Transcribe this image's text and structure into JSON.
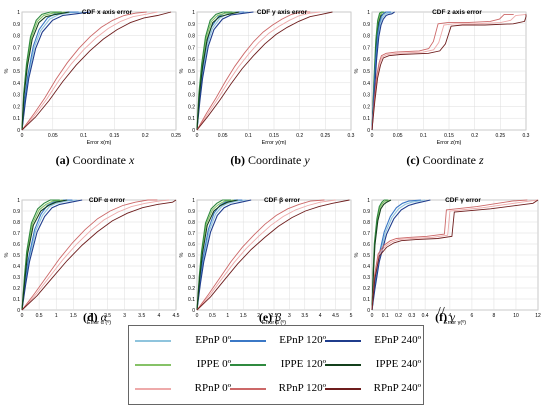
{
  "figure": {
    "captions": [
      {
        "tag": "(a)",
        "text": "Coordinate",
        "sym": "x"
      },
      {
        "tag": "(b)",
        "text": "Coordinate",
        "sym": "y"
      },
      {
        "tag": "(c)",
        "text": "Coordinate",
        "sym": "z"
      },
      {
        "tag": "(d)",
        "text": "",
        "sym": "α"
      },
      {
        "tag": "(e)",
        "text": "",
        "sym": "β"
      },
      {
        "tag": "(f)",
        "text": "",
        "sym": "γ"
      }
    ],
    "legend": [
      {
        "label": "EPnP 0º",
        "color": "#8fc4dd"
      },
      {
        "label": "EPnP 120º",
        "color": "#3b78c6"
      },
      {
        "label": "EPnP 240º",
        "color": "#1f3c8c"
      },
      {
        "label": "IPPE 0º",
        "color": "#86c267"
      },
      {
        "label": "IPPE 120º",
        "color": "#2f8a3f"
      },
      {
        "label": "IPPE 240º",
        "color": "#14401c"
      },
      {
        "label": "RPnP 0º",
        "color": "#eeaaaa"
      },
      {
        "label": "RPnP 120º",
        "color": "#cc6868"
      },
      {
        "label": "RPnP 240º",
        "color": "#6e1d1d"
      }
    ]
  },
  "chart_data": [
    {
      "type": "line",
      "title": "CDF x axis error",
      "xlabel": "Error x(m)",
      "ylabel": "%",
      "xlim": [
        0,
        0.25
      ],
      "ylim": [
        0,
        1
      ],
      "xticks": [
        "0",
        "0.05",
        "0.1",
        "0.15",
        "0.2",
        "0.25"
      ],
      "yticks": [
        "0",
        "0.1",
        "0.2",
        "0.3",
        "0.4",
        "0.5",
        "0.6",
        "0.7",
        "0.8",
        "0.9",
        "1"
      ],
      "grid": true,
      "series": [
        {
          "family": "EPnP",
          "x": [
            0,
            0.005,
            0.01,
            0.02,
            0.03,
            0.045,
            0.06,
            0.08,
            0.1
          ],
          "y": [
            0,
            0.25,
            0.45,
            0.7,
            0.84,
            0.94,
            0.98,
            0.995,
            1.0
          ]
        },
        {
          "family": "IPPE",
          "x": [
            0,
            0.003,
            0.008,
            0.015,
            0.025,
            0.035,
            0.05,
            0.07
          ],
          "y": [
            0,
            0.3,
            0.55,
            0.78,
            0.92,
            0.97,
            0.99,
            1.0
          ]
        },
        {
          "family": "RPnP",
          "x": [
            0,
            0.02,
            0.04,
            0.06,
            0.08,
            0.1,
            0.12,
            0.14,
            0.16,
            0.18,
            0.2,
            0.22
          ],
          "y": [
            0,
            0.12,
            0.26,
            0.42,
            0.56,
            0.68,
            0.78,
            0.86,
            0.92,
            0.96,
            0.98,
            1.0
          ]
        }
      ]
    },
    {
      "type": "line",
      "title": "CDF y axis error",
      "xlabel": "Error y(m)",
      "ylabel": "%",
      "xlim": [
        0,
        0.3
      ],
      "ylim": [
        0,
        1
      ],
      "xticks": [
        "0",
        "0.05",
        "0.1",
        "0.15",
        "0.2",
        "0.25",
        "0.3"
      ],
      "yticks": [
        "0",
        "0.1",
        "0.2",
        "0.3",
        "0.4",
        "0.5",
        "0.6",
        "0.7",
        "0.8",
        "0.9",
        "1"
      ],
      "grid": true,
      "series": [
        {
          "family": "EPnP",
          "x": [
            0,
            0.005,
            0.01,
            0.02,
            0.03,
            0.045,
            0.06,
            0.08,
            0.1
          ],
          "y": [
            0,
            0.25,
            0.45,
            0.72,
            0.86,
            0.95,
            0.985,
            0.998,
            1.0
          ]
        },
        {
          "family": "IPPE",
          "x": [
            0,
            0.004,
            0.01,
            0.018,
            0.028,
            0.04,
            0.055,
            0.075
          ],
          "y": [
            0,
            0.3,
            0.55,
            0.78,
            0.92,
            0.97,
            0.99,
            1.0
          ]
        },
        {
          "family": "RPnP",
          "x": [
            0,
            0.02,
            0.04,
            0.06,
            0.08,
            0.1,
            0.12,
            0.14,
            0.16,
            0.18,
            0.2,
            0.22,
            0.24
          ],
          "y": [
            0,
            0.13,
            0.26,
            0.4,
            0.53,
            0.64,
            0.74,
            0.82,
            0.88,
            0.93,
            0.97,
            0.99,
            1.0
          ]
        }
      ]
    },
    {
      "type": "line",
      "title": "CDF z axis error",
      "xlabel": "Error z(m)",
      "ylabel": "%",
      "xlim": [
        0,
        0.3
      ],
      "ylim": [
        0,
        1
      ],
      "xticks": [
        "0",
        "0.05",
        "0.1",
        "0.15",
        "0.2",
        "0.25",
        "0.3"
      ],
      "yticks": [
        "0",
        "0.1",
        "0.2",
        "0.3",
        "0.4",
        "0.5",
        "0.6",
        "0.7",
        "0.8",
        "0.9",
        "1"
      ],
      "grid": true,
      "series": [
        {
          "family": "IPPE",
          "x": [
            0,
            0.004,
            0.008,
            0.012,
            0.016,
            0.02,
            0.025
          ],
          "y": [
            0,
            0.4,
            0.75,
            0.92,
            0.98,
            0.995,
            1.0
          ]
        },
        {
          "family": "EPnP",
          "x": [
            0,
            0.004,
            0.008,
            0.012,
            0.016,
            0.02,
            0.025,
            0.03,
            0.035,
            0.04
          ],
          "y": [
            0,
            0.3,
            0.6,
            0.8,
            0.9,
            0.95,
            0.98,
            0.99,
            0.995,
            1.0
          ]
        },
        {
          "family": "RPnP",
          "x": [
            0,
            0.005,
            0.01,
            0.015,
            0.02,
            0.03,
            0.05,
            0.1,
            0.12,
            0.13,
            0.14,
            0.16,
            0.2,
            0.25,
            0.27,
            0.28,
            0.3
          ],
          "y": [
            0,
            0.25,
            0.45,
            0.56,
            0.62,
            0.64,
            0.65,
            0.66,
            0.68,
            0.74,
            0.89,
            0.9,
            0.9,
            0.91,
            0.93,
            0.97,
            0.98
          ]
        }
      ]
    },
    {
      "type": "line",
      "title": "CDF α error",
      "xlabel": "Error α (º)",
      "ylabel": "%",
      "xlim": [
        0,
        4.5
      ],
      "ylim": [
        0,
        1
      ],
      "xticks": [
        "0",
        "0.5",
        "1",
        "1.5",
        "2",
        "2.5",
        "3",
        "3.5",
        "4",
        "4.5"
      ],
      "yticks": [
        "0",
        "0.1",
        "0.2",
        "0.3",
        "0.4",
        "0.5",
        "0.6",
        "0.7",
        "0.8",
        "0.9",
        "1"
      ],
      "grid": true,
      "series": [
        {
          "family": "EPnP",
          "x": [
            0,
            0.1,
            0.2,
            0.4,
            0.6,
            0.8,
            1.0,
            1.3,
            1.6
          ],
          "y": [
            0,
            0.25,
            0.45,
            0.72,
            0.86,
            0.94,
            0.97,
            0.99,
            1.0
          ]
        },
        {
          "family": "IPPE",
          "x": [
            0,
            0.08,
            0.15,
            0.3,
            0.5,
            0.7,
            0.9,
            1.2
          ],
          "y": [
            0,
            0.3,
            0.52,
            0.78,
            0.91,
            0.96,
            0.99,
            1.0
          ]
        },
        {
          "family": "RPnP",
          "x": [
            0,
            0.4,
            0.8,
            1.2,
            1.6,
            2.0,
            2.4,
            2.8,
            3.2,
            3.6,
            4.0,
            4.3
          ],
          "y": [
            0,
            0.14,
            0.3,
            0.46,
            0.6,
            0.72,
            0.82,
            0.89,
            0.94,
            0.97,
            0.99,
            1.0
          ]
        }
      ]
    },
    {
      "type": "line",
      "title": "CDF β error",
      "xlabel": "Error β (º)",
      "ylabel": "%",
      "xlim": [
        0,
        5
      ],
      "ylim": [
        0,
        1
      ],
      "xticks": [
        "0",
        "0.5",
        "1",
        "1.5",
        "2",
        "2.5",
        "3",
        "3.5",
        "4",
        "4.5",
        "5"
      ],
      "yticks": [
        "0",
        "0.1",
        "0.2",
        "0.3",
        "0.4",
        "0.5",
        "0.6",
        "0.7",
        "0.8",
        "0.9",
        "1"
      ],
      "grid": true,
      "series": [
        {
          "family": "EPnP",
          "x": [
            0,
            0.1,
            0.2,
            0.4,
            0.6,
            0.8,
            1.0,
            1.3,
            1.6
          ],
          "y": [
            0,
            0.25,
            0.45,
            0.72,
            0.87,
            0.94,
            0.97,
            0.99,
            1.0
          ]
        },
        {
          "family": "IPPE",
          "x": [
            0,
            0.08,
            0.16,
            0.3,
            0.5,
            0.7,
            0.9,
            1.2
          ],
          "y": [
            0,
            0.3,
            0.52,
            0.78,
            0.91,
            0.96,
            0.99,
            1.0
          ]
        },
        {
          "family": "RPnP",
          "x": [
            0,
            0.4,
            0.8,
            1.2,
            1.6,
            2.0,
            2.4,
            2.8,
            3.2,
            3.6,
            4.0,
            4.5
          ],
          "y": [
            0,
            0.13,
            0.28,
            0.43,
            0.56,
            0.67,
            0.77,
            0.85,
            0.91,
            0.95,
            0.98,
            1.0
          ]
        }
      ]
    },
    {
      "type": "line",
      "title": "CDF γ error",
      "xlabel": "Error γ(º)",
      "ylabel": "%",
      "xlim": [
        0,
        12
      ],
      "ylim": [
        0,
        1
      ],
      "xticks": [
        "0",
        "0.1",
        "0.2",
        "0.3",
        "0.4",
        "4",
        "6",
        "8",
        "10",
        "12"
      ],
      "yticks": [
        "0",
        "0.1",
        "0.2",
        "0.3",
        "0.4",
        "0.5",
        "0.6",
        "0.7",
        "0.8",
        "0.9",
        "1"
      ],
      "grid": true,
      "series": [
        {
          "family": "IPPE",
          "x": [
            0,
            0.01,
            0.02,
            0.04,
            0.06,
            0.08,
            0.1,
            0.13
          ],
          "y": [
            0,
            0.35,
            0.6,
            0.82,
            0.93,
            0.97,
            0.99,
            1.0
          ]
        },
        {
          "family": "EPnP",
          "x": [
            0,
            0.02,
            0.05,
            0.1,
            0.15,
            0.2,
            0.25,
            0.3,
            0.4
          ],
          "y": [
            0,
            0.2,
            0.45,
            0.7,
            0.84,
            0.92,
            0.96,
            0.98,
            1.0
          ]
        },
        {
          "family": "RPnP",
          "x": [
            0,
            0.02,
            0.05,
            0.1,
            0.15,
            0.2,
            0.3,
            0.45,
            3.8,
            4.0,
            7.0,
            10.5,
            12.0
          ],
          "y": [
            0,
            0.3,
            0.5,
            0.58,
            0.62,
            0.64,
            0.65,
            0.66,
            0.68,
            0.9,
            0.93,
            0.98,
            1.0
          ]
        }
      ]
    }
  ]
}
